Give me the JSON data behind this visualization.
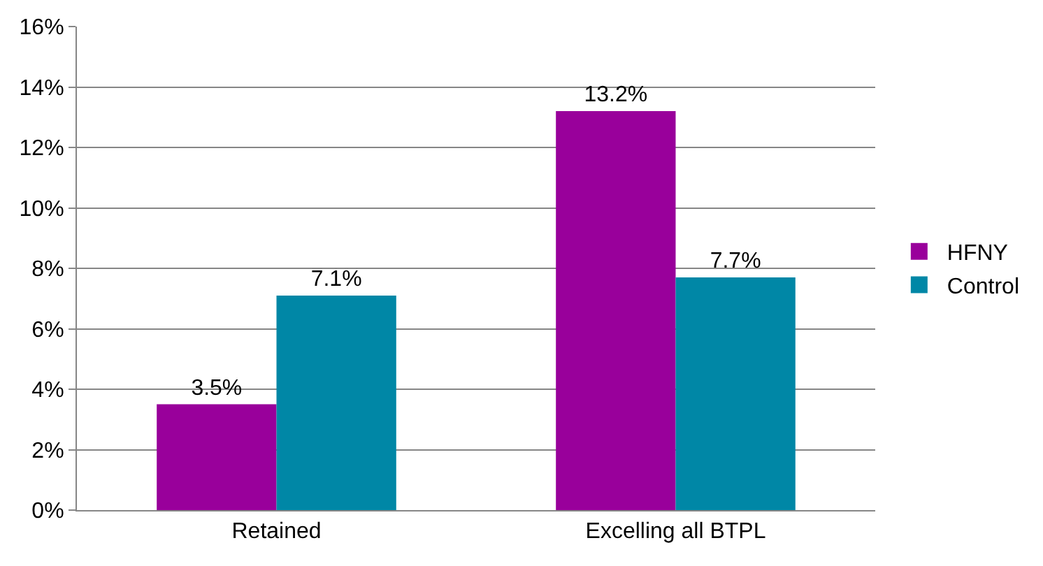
{
  "chart_data": {
    "type": "bar",
    "categories": [
      "Retained",
      "Excelling all BTPL"
    ],
    "series": [
      {
        "name": "HFNY",
        "color": "#99009b",
        "values": [
          3.5,
          13.2
        ],
        "value_labels": [
          "3.5%",
          "13.2%"
        ]
      },
      {
        "name": "Control",
        "color": "#0087a6",
        "values": [
          7.1,
          7.7
        ],
        "value_labels": [
          "7.1%",
          "7.7%"
        ]
      }
    ],
    "ylim": [
      0,
      16
    ],
    "yticks": [
      {
        "value": 0,
        "label": "0%"
      },
      {
        "value": 2,
        "label": "2%"
      },
      {
        "value": 4,
        "label": "4%"
      },
      {
        "value": 6,
        "label": "6%"
      },
      {
        "value": 8,
        "label": "8%"
      },
      {
        "value": 10,
        "label": "10%"
      },
      {
        "value": 12,
        "label": "12%"
      },
      {
        "value": 14,
        "label": "14%"
      },
      {
        "value": 16,
        "label": "16%"
      }
    ],
    "grid": "y",
    "legend": "right"
  }
}
